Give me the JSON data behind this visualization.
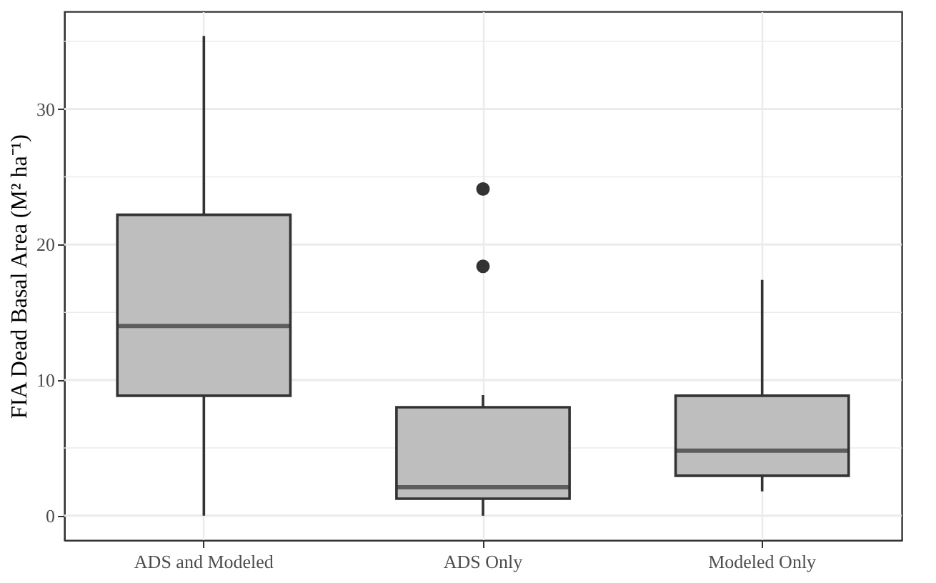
{
  "chart_data": {
    "type": "box",
    "ylabel": "FIA Dead Basal Area (M² ha⁻¹)",
    "categories": [
      "ADS and Modeled",
      "ADS Only",
      "Modeled Only"
    ],
    "boxes": [
      {
        "low": 0,
        "q1": 8.85,
        "median": 14.0,
        "q3": 22.2,
        "high": 35.4
      },
      {
        "low": 0,
        "q1": 1.26,
        "median": 2.1,
        "q3": 8.0,
        "high": 8.9,
        "outliers": [
          18.4,
          24.1
        ]
      },
      {
        "low": 1.8,
        "q1": 2.95,
        "median": 4.8,
        "q3": 8.85,
        "high": 17.4
      }
    ],
    "color": "#bebebe",
    "ylim": [
      -1.8,
      37.2
    ],
    "yticks": [
      {
        "value": 0,
        "label": "0"
      },
      {
        "value": 5,
        "label": null
      },
      {
        "value": 10,
        "label": "10"
      },
      {
        "value": 15,
        "label": null
      },
      {
        "value": 20,
        "label": "20"
      },
      {
        "value": 25,
        "label": null
      },
      {
        "value": 30,
        "label": "30"
      },
      {
        "value": 35,
        "label": null
      }
    ],
    "grid": true
  }
}
